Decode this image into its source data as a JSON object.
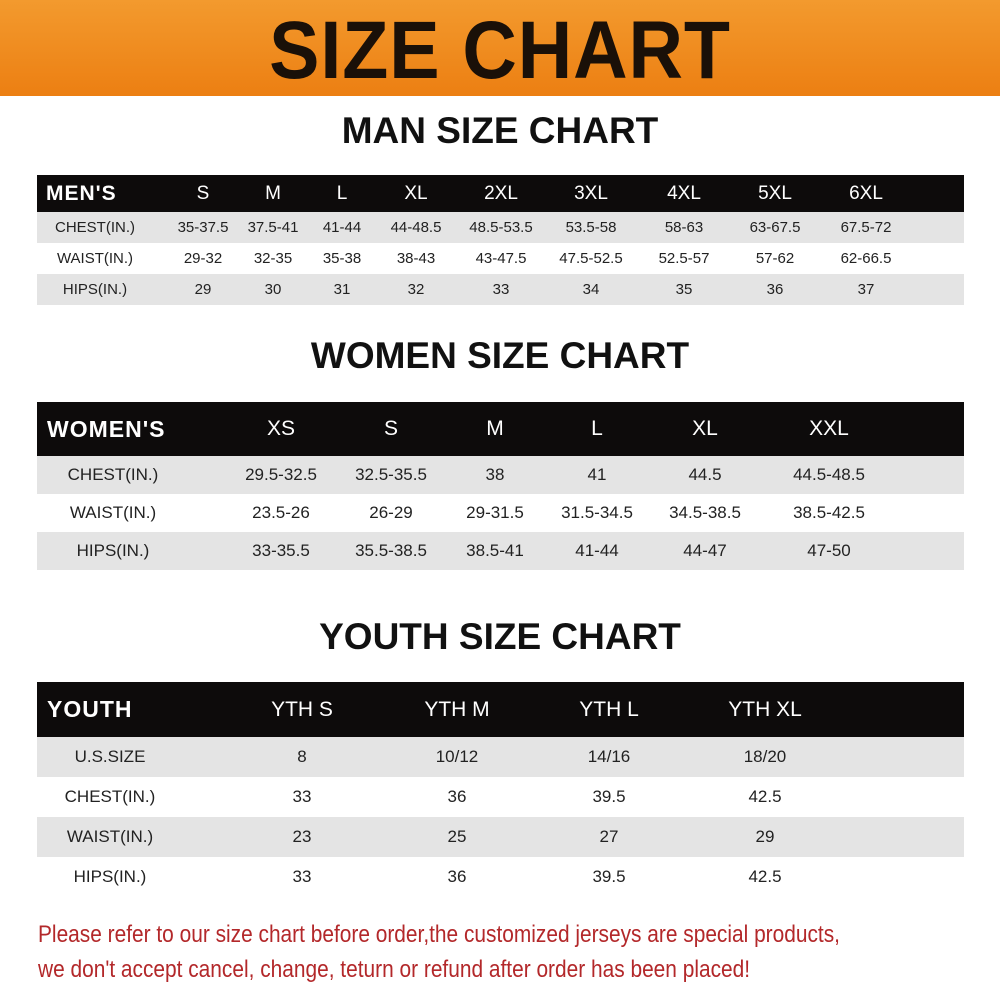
{
  "banner_title": "SIZE CHART",
  "men": {
    "title": "MAN SIZE CHART",
    "header": [
      "MEN'S",
      "S",
      "M",
      "L",
      "XL",
      "2XL",
      "3XL",
      "4XL",
      "5XL",
      "6XL"
    ],
    "rows": [
      [
        "CHEST(IN.)",
        "35-37.5",
        "37.5-41",
        "41-44",
        "44-48.5",
        "48.5-53.5",
        "53.5-58",
        "58-63",
        "63-67.5",
        "67.5-72"
      ],
      [
        "WAIST(IN.)",
        "29-32",
        "32-35",
        "35-38",
        "38-43",
        "43-47.5",
        "47.5-52.5",
        "52.5-57",
        "57-62",
        "62-66.5"
      ],
      [
        "HIPS(IN.)",
        "29",
        "30",
        "31",
        "32",
        "33",
        "34",
        "35",
        "36",
        "37"
      ]
    ]
  },
  "women": {
    "title": "WOMEN SIZE CHART",
    "header": [
      "WOMEN'S",
      "XS",
      "S",
      "M",
      "L",
      "XL",
      "XXL"
    ],
    "rows": [
      [
        "CHEST(IN.)",
        "29.5-32.5",
        "32.5-35.5",
        "38",
        "41",
        "44.5",
        "44.5-48.5"
      ],
      [
        "WAIST(IN.)",
        "23.5-26",
        "26-29",
        "29-31.5",
        "31.5-34.5",
        "34.5-38.5",
        "38.5-42.5"
      ],
      [
        "HIPS(IN.)",
        "33-35.5",
        "35.5-38.5",
        "38.5-41",
        "41-44",
        "44-47",
        "47-50"
      ]
    ]
  },
  "youth": {
    "title": "YOUTH SIZE CHART",
    "header": [
      "YOUTH",
      "YTH S",
      "YTH M",
      "YTH L",
      "YTH XL"
    ],
    "rows": [
      [
        "U.S.SIZE",
        "8",
        "10/12",
        "14/16",
        "18/20"
      ],
      [
        "CHEST(IN.)",
        "33",
        "36",
        "39.5",
        "42.5"
      ],
      [
        "WAIST(IN.)",
        "23",
        "25",
        "27",
        "29"
      ],
      [
        "HIPS(IN.)",
        "33",
        "36",
        "39.5",
        "42.5"
      ]
    ]
  },
  "notice": [
    "Please refer to our size chart before order,the customized jerseys are special products,",
    "we don't accept cancel, change, teturn or refund after order has been placed!"
  ],
  "colors": {
    "banner": "#ee8a1e",
    "header_bg": "#0d0b0b",
    "row_gray": "#e4e4e4",
    "notice": "#b3282a"
  }
}
